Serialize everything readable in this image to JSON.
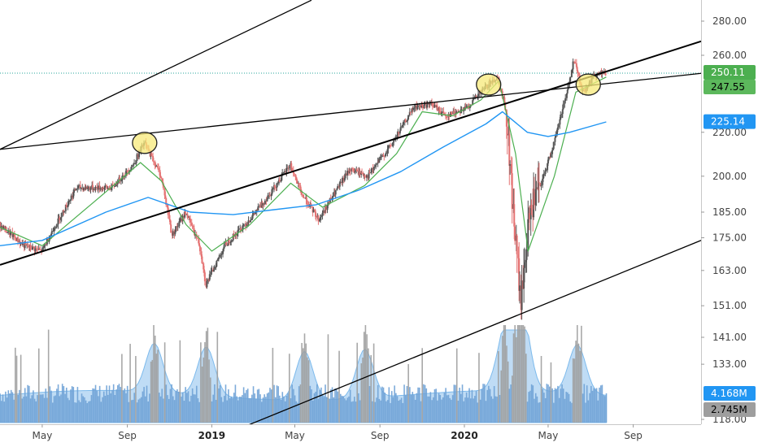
{
  "chart_data": {
    "type": "candlestick",
    "title": "",
    "xlabel": "",
    "ylabel": "",
    "scale": "log",
    "ylim": [
      116,
      292
    ],
    "grid": false,
    "colors": {
      "up": "#26a69a",
      "candle_up": "#555555",
      "candle_down": "#e57373",
      "ma_short": "#4caf50",
      "ma_long": "#2196f3",
      "trendline": "#000000",
      "highlight": "#f7e97a",
      "price_line": "#26a69a",
      "volume": "#6fa2d6",
      "volume_spike": "#9e9e9e",
      "volume_ma_fill": "#b9d9f5"
    },
    "y_ticks": [
      "280.00",
      "260.00",
      "220.00",
      "200.00",
      "185.00",
      "175.00",
      "163.00",
      "151.00",
      "141.00",
      "133.00",
      "118.00"
    ],
    "y_tick_values": [
      280,
      260,
      220,
      200,
      185,
      175,
      163,
      151,
      141,
      133,
      118
    ],
    "x_ticks": [
      {
        "label": "May",
        "bold": false
      },
      {
        "label": "Sep",
        "bold": false
      },
      {
        "label": "2019",
        "bold": true
      },
      {
        "label": "May",
        "bold": false
      },
      {
        "label": "Sep",
        "bold": false
      },
      {
        "label": "2020",
        "bold": true
      },
      {
        "label": "May",
        "bold": false
      },
      {
        "label": "Sep",
        "bold": false
      }
    ],
    "x_tick_dates": [
      "2018-05-01",
      "2018-09-01",
      "2019-01-01",
      "2019-05-01",
      "2019-09-01",
      "2020-01-01",
      "2020-05-01",
      "2020-09-01"
    ],
    "x_range": [
      "2018-03-01",
      "2020-12-08"
    ],
    "price_path": [
      [
        "2018-03-01",
        180
      ],
      [
        "2018-04-05",
        172
      ],
      [
        "2018-05-01",
        170
      ],
      [
        "2018-06-20",
        195
      ],
      [
        "2018-08-10",
        195
      ],
      [
        "2018-09-10",
        205
      ],
      [
        "2018-09-26",
        215
      ],
      [
        "2018-10-20",
        200
      ],
      [
        "2018-11-05",
        176
      ],
      [
        "2018-11-25",
        185
      ],
      [
        "2018-12-15",
        172
      ],
      [
        "2018-12-24",
        158
      ],
      [
        "2019-01-20",
        172
      ],
      [
        "2019-02-25",
        182
      ],
      [
        "2019-03-20",
        190
      ],
      [
        "2019-04-25",
        205
      ],
      [
        "2019-05-10",
        193
      ],
      [
        "2019-06-05",
        182
      ],
      [
        "2019-07-20",
        203
      ],
      [
        "2019-08-15",
        200
      ],
      [
        "2019-09-20",
        215
      ],
      [
        "2019-10-20",
        232
      ],
      [
        "2019-11-15",
        234
      ],
      [
        "2019-12-05",
        228
      ],
      [
        "2020-01-05",
        232
      ],
      [
        "2020-02-05",
        244
      ],
      [
        "2020-02-18",
        248
      ],
      [
        "2020-03-01",
        232
      ],
      [
        "2020-03-12",
        185
      ],
      [
        "2020-03-23",
        151
      ],
      [
        "2020-04-05",
        185
      ],
      [
        "2020-04-20",
        195
      ],
      [
        "2020-05-10",
        215
      ],
      [
        "2020-06-01",
        245
      ],
      [
        "2020-06-08",
        258
      ],
      [
        "2020-06-20",
        240
      ],
      [
        "2020-07-10",
        250
      ],
      [
        "2020-07-24",
        250
      ]
    ],
    "ma_short": [
      [
        "2018-03-01",
        179
      ],
      [
        "2018-05-01",
        172
      ],
      [
        "2018-07-10",
        188
      ],
      [
        "2018-09-20",
        206
      ],
      [
        "2018-10-20",
        198
      ],
      [
        "2018-11-25",
        180
      ],
      [
        "2019-01-01",
        170
      ],
      [
        "2019-02-25",
        180
      ],
      [
        "2019-04-25",
        197
      ],
      [
        "2019-06-10",
        187
      ],
      [
        "2019-08-10",
        196
      ],
      [
        "2019-09-25",
        210
      ],
      [
        "2019-11-01",
        230
      ],
      [
        "2019-12-15",
        228
      ],
      [
        "2020-01-25",
        236
      ],
      [
        "2020-02-20",
        246
      ],
      [
        "2020-03-15",
        210
      ],
      [
        "2020-04-02",
        170
      ],
      [
        "2020-05-10",
        200
      ],
      [
        "2020-06-10",
        240
      ],
      [
        "2020-07-24",
        248
      ]
    ],
    "ma_long": [
      [
        "2018-03-01",
        172
      ],
      [
        "2018-05-01",
        174
      ],
      [
        "2018-08-01",
        185
      ],
      [
        "2018-10-01",
        191
      ],
      [
        "2018-12-01",
        185
      ],
      [
        "2019-02-01",
        184
      ],
      [
        "2019-04-01",
        186
      ],
      [
        "2019-06-01",
        188
      ],
      [
        "2019-08-01",
        194
      ],
      [
        "2019-10-01",
        202
      ],
      [
        "2019-12-01",
        213
      ],
      [
        "2020-02-01",
        224
      ],
      [
        "2020-02-25",
        230
      ],
      [
        "2020-04-01",
        220
      ],
      [
        "2020-05-01",
        218
      ],
      [
        "2020-06-01",
        220
      ],
      [
        "2020-07-24",
        225
      ]
    ],
    "trendlines": [
      {
        "from": [
          "2018-03-01",
          212
        ],
        "to": [
          "2019-05-25",
          293
        ]
      },
      {
        "from": [
          "2018-03-01",
          212
        ],
        "to": [
          "2020-12-08",
          250
        ]
      },
      {
        "from": [
          "2018-03-01",
          165
        ],
        "to": [
          "2020-12-08",
          268
        ]
      },
      {
        "from": [
          "2019-02-15",
          116
        ],
        "to": [
          "2020-12-08",
          174
        ]
      }
    ],
    "highlight_circles": [
      "2018-09-26",
      "2020-02-05",
      "2020-06-28"
    ],
    "highlight_values": [
      215,
      244,
      244
    ],
    "price_line_value": 250.11,
    "volume_spikes": [
      "2018-10-10",
      "2018-12-24",
      "2019-05-15",
      "2019-08-10",
      "2020-02-28",
      "2020-03-16",
      "2020-03-25",
      "2020-06-12"
    ],
    "price_labels": {
      "current": "250.11",
      "previous": "247.55",
      "ma": "225.14",
      "volume": "4.168M",
      "volume_ma": "2.745M"
    }
  }
}
